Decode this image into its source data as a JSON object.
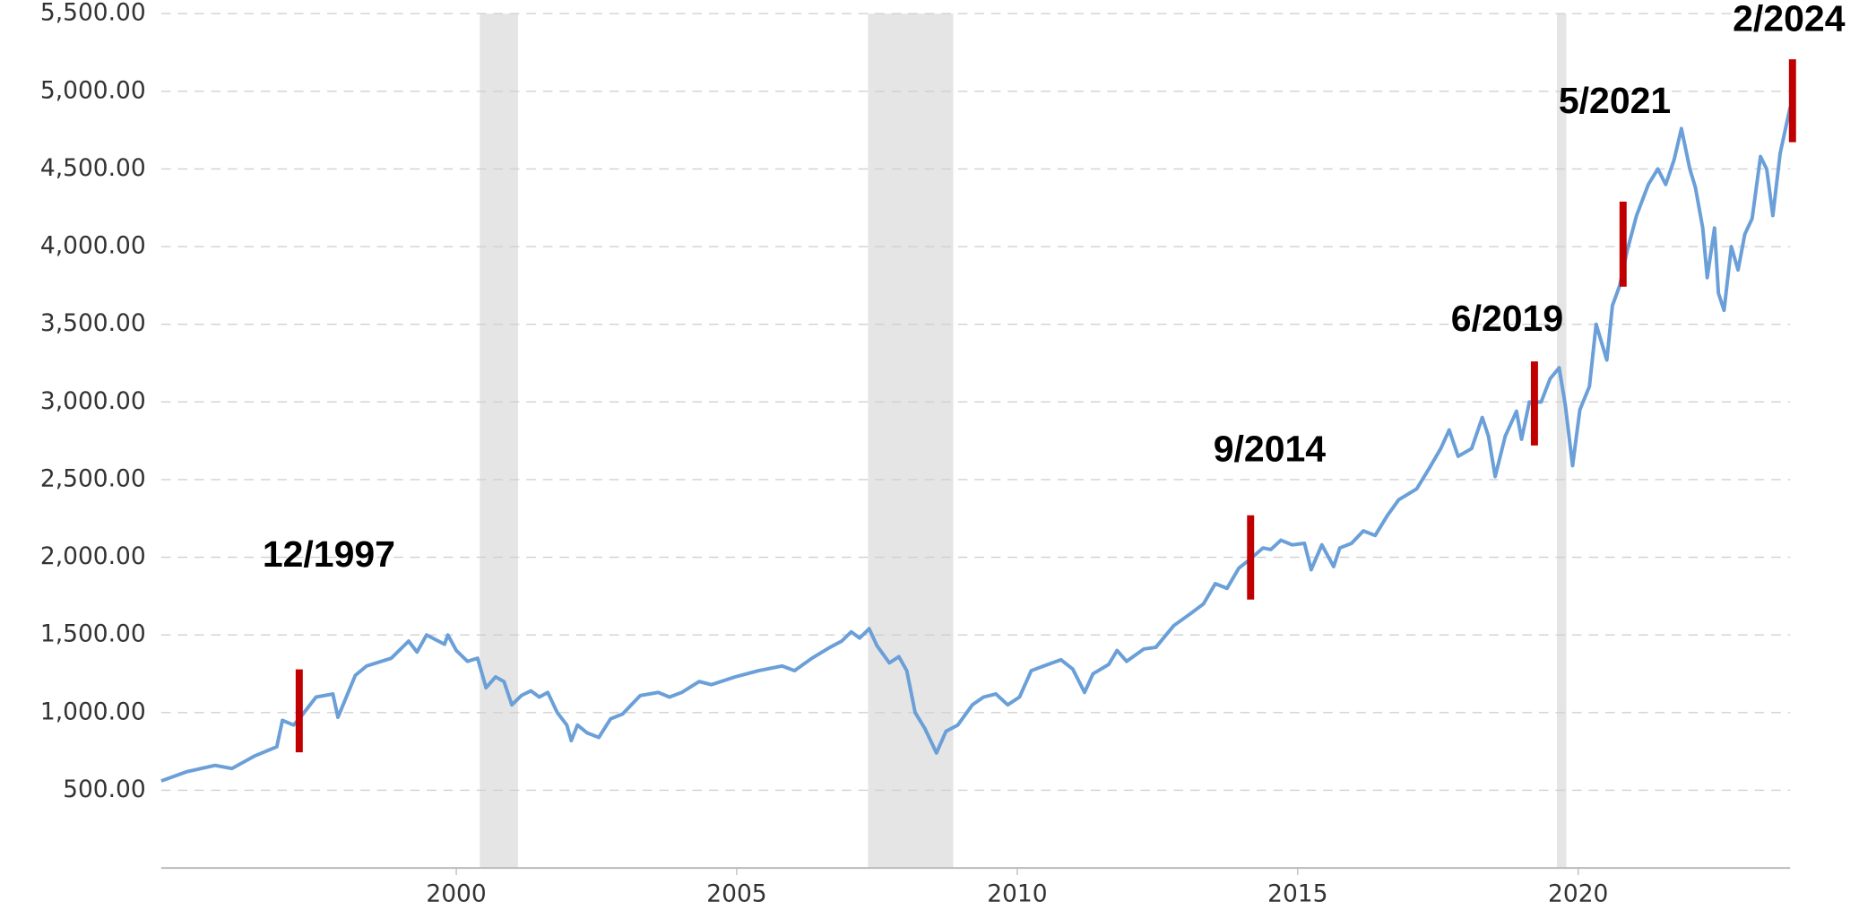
{
  "chart_data": {
    "type": "line",
    "x": [
      1994.74,
      1995.2,
      1995.7,
      1996.0,
      1996.4,
      1996.8,
      1996.9,
      1997.1,
      1997.2,
      1997.5,
      1997.8,
      1997.89,
      1998.2,
      1998.4,
      1998.84,
      1999.15,
      1999.3,
      1999.47,
      1999.79,
      1999.85,
      2000.0,
      2000.2,
      2000.38,
      2000.53,
      2000.7,
      2000.85,
      2000.99,
      2001.16,
      2001.33,
      2001.48,
      2001.63,
      2001.8,
      2001.97,
      2002.05,
      2002.16,
      2002.33,
      2002.54,
      2002.75,
      2002.96,
      2003.28,
      2003.6,
      2003.8,
      2004.02,
      2004.33,
      2004.55,
      2004.97,
      2005.39,
      2005.81,
      2006.03,
      2006.34,
      2006.66,
      2006.87,
      2007.04,
      2007.19,
      2007.36,
      2007.5,
      2007.72,
      2007.89,
      2008.03,
      2008.18,
      2008.35,
      2008.56,
      2008.73,
      2008.94,
      2009.2,
      2009.4,
      2009.62,
      2009.83,
      2010.04,
      2010.25,
      2010.47,
      2010.78,
      2010.99,
      2011.2,
      2011.35,
      2011.63,
      2011.78,
      2011.95,
      2012.26,
      2012.47,
      2012.79,
      2013.1,
      2013.32,
      2013.53,
      2013.74,
      2013.95,
      2014.16,
      2014.38,
      2014.52,
      2014.7,
      2014.9,
      2015.12,
      2015.24,
      2015.43,
      2015.64,
      2015.75,
      2015.96,
      2016.17,
      2016.38,
      2016.6,
      2016.8,
      2017.12,
      2017.34,
      2017.55,
      2017.7,
      2017.86,
      2018.1,
      2018.29,
      2018.4,
      2018.52,
      2018.7,
      2018.9,
      2018.99,
      2019.13,
      2019.34,
      2019.5,
      2019.66,
      2019.77,
      2019.9,
      2020.03,
      2020.2,
      2020.32,
      2020.51,
      2020.61,
      2020.74,
      2020.87,
      2021.04,
      2021.25,
      2021.42,
      2021.56,
      2021.71,
      2021.84,
      2021.99,
      2022.09,
      2022.22,
      2022.3,
      2022.43,
      2022.5,
      2022.6,
      2022.73,
      2022.85,
      2022.97,
      2023.1,
      2023.25,
      2023.36,
      2023.47,
      2023.6,
      2023.78
    ],
    "series": [
      {
        "color": "#6a9fd8",
        "values": [
          560,
          620,
          660,
          640,
          720,
          780,
          950,
          920,
          960,
          1100,
          1120,
          970,
          1240,
          1300,
          1350,
          1460,
          1390,
          1500,
          1440,
          1500,
          1400,
          1330,
          1350,
          1160,
          1230,
          1200,
          1050,
          1110,
          1140,
          1100,
          1130,
          1000,
          920,
          820,
          920,
          870,
          840,
          960,
          990,
          1110,
          1130,
          1100,
          1130,
          1200,
          1180,
          1230,
          1270,
          1300,
          1270,
          1350,
          1420,
          1460,
          1520,
          1480,
          1540,
          1430,
          1320,
          1360,
          1270,
          1000,
          900,
          740,
          880,
          920,
          1050,
          1100,
          1120,
          1050,
          1100,
          1270,
          1300,
          1340,
          1280,
          1130,
          1250,
          1310,
          1400,
          1330,
          1410,
          1420,
          1560,
          1640,
          1700,
          1830,
          1800,
          1930,
          1990,
          2060,
          2050,
          2110,
          2080,
          2090,
          1920,
          2080,
          1940,
          2060,
          2090,
          2170,
          2140,
          2270,
          2370,
          2440,
          2570,
          2700,
          2820,
          2650,
          2700,
          2900,
          2780,
          2520,
          2780,
          2940,
          2760,
          3000,
          3000,
          3150,
          3220,
          2980,
          2590,
          2950,
          3100,
          3500,
          3270,
          3620,
          3750,
          3970,
          4200,
          4400,
          4500,
          4400,
          4560,
          4760,
          4500,
          4380,
          4120,
          3800,
          4120,
          3700,
          3590,
          4000,
          3850,
          4080,
          4180,
          4580,
          4500,
          4200,
          4600,
          4900
        ]
      }
    ],
    "xlim": [
      1994.74,
      2023.78
    ],
    "ylim": [
      0,
      5500
    ],
    "xticks": [
      2000,
      2005,
      2010,
      2015,
      2020
    ],
    "yticks": [
      {
        "value": 500,
        "label": "500.00"
      },
      {
        "value": 1000,
        "label": "1,000.00"
      },
      {
        "value": 1500,
        "label": "1,500.00"
      },
      {
        "value": 2000,
        "label": "2,000.00"
      },
      {
        "value": 2500,
        "label": "2,500.00"
      },
      {
        "value": 3000,
        "label": "3,000.00"
      },
      {
        "value": 3500,
        "label": "3,500.00"
      },
      {
        "value": 4000,
        "label": "4,000.00"
      },
      {
        "value": 4500,
        "label": "4,500.00"
      },
      {
        "value": 5000,
        "label": "5,000.00"
      },
      {
        "value": 5500,
        "label": "5,500.00"
      }
    ],
    "grid": true,
    "shaded_periods": [
      {
        "start": 2000.42,
        "end": 2001.1,
        "color": "#e5e5e5"
      },
      {
        "start": 2007.34,
        "end": 2008.86,
        "color": "#e5e5e5"
      },
      {
        "start": 2019.62,
        "end": 2019.79,
        "color": "#e5e5e5"
      }
    ],
    "annotations": [
      {
        "text": "12/1997",
        "x": 1997.2,
        "low": 744,
        "high": 1278,
        "color": "#c00000"
      },
      {
        "text": "9/2014",
        "x": 2014.16,
        "low": 1728,
        "high": 2270,
        "color": "#c00000"
      },
      {
        "text": "6/2019",
        "x": 2019.22,
        "low": 2720,
        "high": 3261,
        "color": "#c00000"
      },
      {
        "text": "5/2021",
        "x": 2020.8,
        "low": 3742,
        "high": 4290,
        "color": "#c00000"
      },
      {
        "text": "2/2024",
        "x": 2023.82,
        "low": 4672,
        "high": 5206,
        "color": "#c00000"
      }
    ]
  }
}
